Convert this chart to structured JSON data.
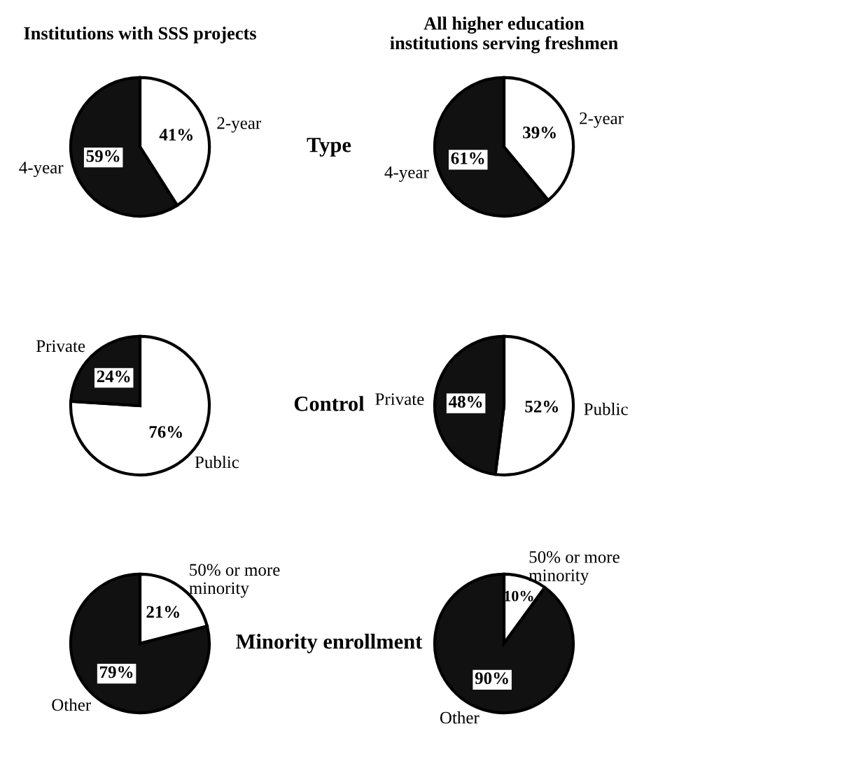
{
  "chart_data": [
    {
      "type": "pie",
      "title": "Institutions with SSS projects",
      "annotations": [
        "Type"
      ],
      "categories": [
        "2-year",
        "4-year"
      ],
      "values": [
        41,
        59
      ],
      "colors": [
        "#ffffff",
        "#111111"
      ],
      "value_labels": [
        "41%",
        "59%"
      ]
    },
    {
      "type": "pie",
      "title": "All higher education\ninstitutions serving freshmen",
      "categories": [
        "2-year",
        "4-year"
      ],
      "values": [
        39,
        61
      ],
      "colors": [
        "#ffffff",
        "#111111"
      ],
      "value_labels": [
        "39%",
        "61%"
      ]
    },
    {
      "type": "pie",
      "annotations": [
        "Control"
      ],
      "categories": [
        "Public",
        "Private"
      ],
      "values": [
        76,
        24
      ],
      "colors": [
        "#ffffff",
        "#111111"
      ],
      "value_labels": [
        "76%",
        "24%"
      ]
    },
    {
      "type": "pie",
      "categories": [
        "Public",
        "Private"
      ],
      "values": [
        52,
        48
      ],
      "colors": [
        "#ffffff",
        "#111111"
      ],
      "value_labels": [
        "52%",
        "48%"
      ]
    },
    {
      "type": "pie",
      "annotations": [
        "Minority enrollment"
      ],
      "categories": [
        "50% or more\nminority",
        "Other"
      ],
      "values": [
        21,
        79
      ],
      "colors": [
        "#ffffff",
        "#111111"
      ],
      "value_labels": [
        "21%",
        "79%"
      ]
    },
    {
      "type": "pie",
      "categories": [
        "50% or more\nminority",
        "Other"
      ],
      "values": [
        10,
        90
      ],
      "colors": [
        "#ffffff",
        "#111111"
      ],
      "value_labels": [
        "10%",
        "90%"
      ]
    }
  ]
}
